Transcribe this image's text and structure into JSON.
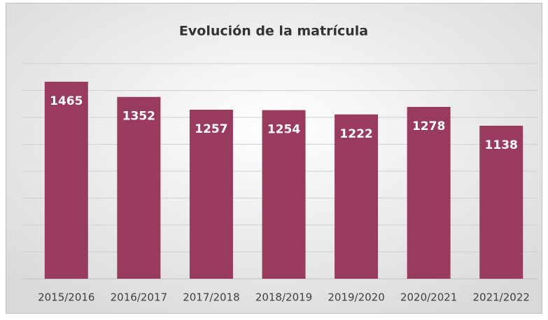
{
  "chart_data": {
    "type": "bar",
    "title": "Evolución de la matrícula",
    "categories": [
      "2015/2016",
      "2016/2017",
      "2017/2018",
      "2018/2019",
      "2019/2020",
      "2020/2021",
      "2021/2022"
    ],
    "values": [
      1465,
      1352,
      1257,
      1254,
      1222,
      1278,
      1138
    ],
    "color": "#993a5f",
    "ylim": [
      0,
      1600
    ],
    "yticks": [
      0,
      200,
      400,
      600,
      800,
      1000,
      1200,
      1400,
      1600
    ],
    "grid": true
  }
}
